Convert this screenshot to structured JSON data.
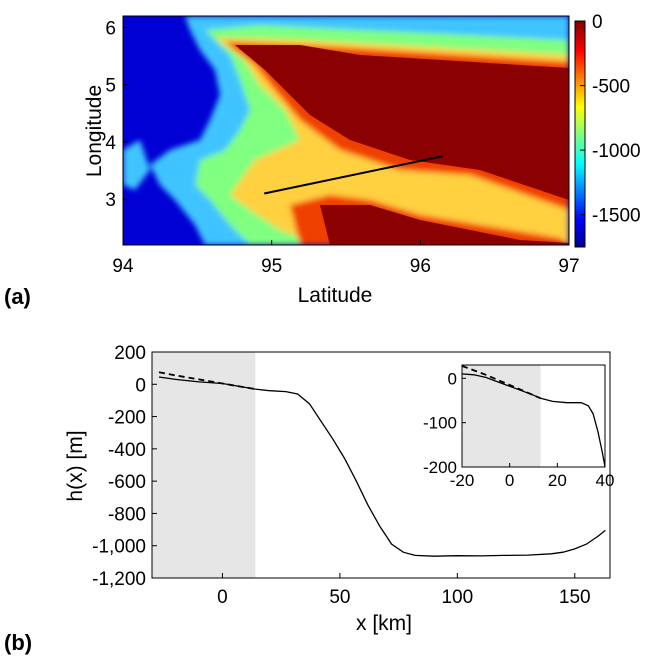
{
  "panels": {
    "a": "(a)",
    "b": "(b)"
  },
  "chart_data": [
    {
      "type": "heatmap",
      "panel": "(a)",
      "xlabel": "Latitude",
      "ylabel": "Longitude",
      "xlim": [
        94,
        97
      ],
      "ylim": [
        2.2,
        6.2
      ],
      "xticks": [
        94,
        95,
        96,
        97
      ],
      "yticks": [
        3,
        4,
        5,
        6
      ],
      "colorbar": {
        "ticks": [
          0,
          -500,
          -1000,
          -1500
        ],
        "labels": [
          "0",
          "-500",
          "-1000",
          "-1500"
        ],
        "range": [
          -1750,
          0
        ],
        "colormap": "jet"
      },
      "transect": {
        "start": [
          94.95,
          3.1
        ],
        "end": [
          96.15,
          3.75
        ],
        "color": "#000000"
      },
      "regions": {
        "deep": {
          "value": -1700,
          "color": "#0000d4"
        },
        "slope_lower": {
          "value": -1200,
          "color": "#40c4ff"
        },
        "slope_mid": {
          "value": -850,
          "color": "#80ff80"
        },
        "slope_upper": {
          "value": -500,
          "color": "#ffd040"
        },
        "shelf_edge": {
          "value": -150,
          "color": "#f04000"
        },
        "shelf": {
          "value": 0,
          "color": "#8b0000"
        }
      }
    },
    {
      "type": "line",
      "panel": "(b)",
      "xlabel": "x [km]",
      "ylabel": "h(x) [m]",
      "xlim": [
        -30,
        165
      ],
      "ylim": [
        -1200,
        200
      ],
      "xticks": [
        0,
        50,
        100,
        150
      ],
      "yticks": [
        200,
        0,
        -200,
        -400,
        -600,
        -800,
        -1000,
        -1200
      ],
      "ytick_labels": [
        "200",
        "0",
        "-200",
        "-400",
        "-600",
        "-800",
        "-1,000",
        "-1,200"
      ],
      "shaded_region": {
        "x": [
          -30,
          14
        ],
        "color": "#e6e6e6"
      },
      "series": [
        {
          "style": "solid",
          "x": [
            -27,
            -20,
            -10,
            0,
            10,
            14,
            20,
            27,
            32,
            37,
            42,
            47,
            52,
            57,
            62,
            67,
            72,
            77,
            82,
            90,
            100,
            110,
            120,
            130,
            140,
            145,
            150,
            155,
            160,
            163
          ],
          "y": [
            45,
            30,
            15,
            5,
            -20,
            -30,
            -40,
            -45,
            -60,
            -120,
            -230,
            -340,
            -460,
            -600,
            -750,
            -880,
            -990,
            -1040,
            -1060,
            -1065,
            -1062,
            -1063,
            -1060,
            -1058,
            -1050,
            -1040,
            -1020,
            -990,
            -940,
            -905
          ]
        },
        {
          "style": "dashed",
          "x": [
            -27,
            -20,
            -10,
            0,
            10,
            14
          ],
          "y": [
            75,
            55,
            30,
            5,
            -20,
            -30
          ]
        }
      ],
      "inset": {
        "xlim": [
          -20,
          40
        ],
        "ylim": [
          -200,
          30
        ],
        "xticks": [
          -20,
          0,
          20,
          40
        ],
        "yticks": [
          0,
          -100,
          -200
        ],
        "shaded_region": {
          "x": [
            -20,
            13
          ]
        },
        "series": [
          {
            "style": "solid",
            "x": [
              -20,
              -15,
              -10,
              -5,
              0,
              5,
              10,
              13,
              18,
              24,
              30,
              33,
              35,
              37,
              39,
              40
            ],
            "y": [
              10,
              8,
              2,
              -8,
              -18,
              -28,
              -38,
              -45,
              -52,
              -55,
              -55,
              -62,
              -80,
              -120,
              -170,
              -200
            ]
          },
          {
            "style": "dashed",
            "x": [
              -20,
              -10,
              0,
              10,
              13
            ],
            "y": [
              28,
              8,
              -15,
              -38,
              -45
            ]
          }
        ]
      }
    }
  ]
}
